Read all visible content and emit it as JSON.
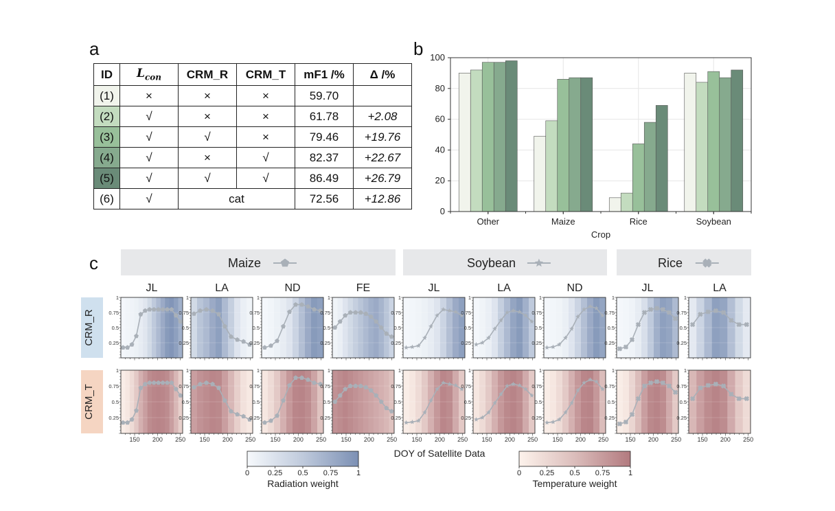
{
  "panels": {
    "a": "a",
    "b": "b",
    "c": "c"
  },
  "table": {
    "headers": {
      "id": "ID",
      "lcon_main": "L",
      "lcon_sub": "con",
      "crm_r": "CRM_R",
      "crm_t": "CRM_T",
      "mf1": "mF1 /%",
      "delta": "Δ /%"
    },
    "rows": [
      {
        "id": "(1)",
        "lcon": "×",
        "crm_r": "×",
        "crm_t": "×",
        "mf1": "59.70",
        "delta": "",
        "color": "#f1f4ec"
      },
      {
        "id": "(2)",
        "lcon": "√",
        "crm_r": "×",
        "crm_t": "×",
        "mf1": "61.78",
        "delta": "+2.08",
        "color": "#c3dcbf"
      },
      {
        "id": "(3)",
        "lcon": "√",
        "crm_r": "√",
        "crm_t": "×",
        "mf1": "79.46",
        "delta": "+19.76",
        "color": "#98c09a"
      },
      {
        "id": "(4)",
        "lcon": "√",
        "crm_r": "×",
        "crm_t": "√",
        "mf1": "82.37",
        "delta": "+22.67",
        "color": "#86aa8e"
      },
      {
        "id": "(5)",
        "lcon": "√",
        "crm_r": "√",
        "crm_t": "√",
        "mf1": "86.49",
        "delta": "+26.79",
        "color": "#6a8b78"
      },
      {
        "id": "(6)",
        "lcon": "√",
        "merged": "cat",
        "mf1": "72.56",
        "delta": "+12.86",
        "color": "#ffffff"
      }
    ]
  },
  "chart_data": [
    {
      "type": "bar",
      "xlabel": "Crop",
      "ylabel": "",
      "ylim": [
        0,
        100
      ],
      "yticks": [
        0,
        20,
        40,
        60,
        80,
        100
      ],
      "grid": true,
      "categories": [
        "Other",
        "Maize",
        "Rice",
        "Soybean"
      ],
      "series_colors": [
        "#f1f4ec",
        "#c3dcbf",
        "#98c09a",
        "#86aa8e",
        "#6a8b78"
      ],
      "series": [
        {
          "values": [
            90,
            49,
            9,
            90
          ]
        },
        {
          "values": [
            92,
            59,
            12,
            84
          ]
        },
        {
          "values": [
            97,
            86,
            44,
            91
          ]
        },
        {
          "values": [
            97,
            87,
            58,
            87
          ]
        },
        {
          "values": [
            98,
            87,
            69,
            92
          ]
        }
      ]
    },
    {
      "type": "line",
      "xlabel": "DOY of Satellite Data",
      "rows": [
        "CRM_R",
        "CRM_T"
      ],
      "row_colors": {
        "CRM_R": "#cfe0ee",
        "CRM_T": "#f5d5c2"
      },
      "xticks": [
        150,
        200,
        250
      ],
      "yticks": [
        0,
        0.25,
        0.5,
        0.75,
        1
      ],
      "ytick_labels": [
        "0",
        "0.25",
        "0.5",
        "0.75",
        "1"
      ],
      "groups": [
        {
          "name": "Maize",
          "marker": "pentagon",
          "regions": [
            "JL",
            "LA",
            "ND",
            "FE"
          ]
        },
        {
          "name": "Soybean",
          "marker": "star",
          "regions": [
            "JL",
            "LA",
            "ND"
          ]
        },
        {
          "name": "Rice",
          "marker": "cross",
          "regions": [
            "JL",
            "LA"
          ]
        }
      ],
      "doy": [
        125,
        135,
        145,
        155,
        165,
        175,
        185,
        195,
        205,
        215,
        225,
        235,
        245,
        255
      ],
      "subplots": [
        {
          "group": "Maize",
          "region": "JL",
          "values": [
            0.17,
            0.17,
            0.22,
            0.36,
            0.72,
            0.78,
            0.8,
            0.8,
            0.8,
            0.8,
            0.8,
            0.8,
            0.7,
            0.6
          ],
          "rad": [
            0.02,
            0.04,
            0.06,
            0.08,
            0.12,
            0.18,
            0.3,
            0.45,
            0.6,
            0.75,
            0.9,
            0.95,
            0.85,
            0.7
          ],
          "temp": [
            0.05,
            0.1,
            0.2,
            0.35,
            0.55,
            0.7,
            0.85,
            0.9,
            0.92,
            0.9,
            0.85,
            0.7,
            0.5,
            0.3
          ]
        },
        {
          "group": "Maize",
          "region": "LA",
          "values": [
            0.73,
            0.78,
            0.8,
            0.78,
            0.72,
            0.52,
            0.35,
            0.3,
            0.27,
            0.22
          ],
          "rad": [
            0.3,
            0.5,
            0.6,
            0.75,
            0.85,
            0.6,
            0.4,
            0.2,
            0.1,
            0.05
          ],
          "temp": [
            0.7,
            0.8,
            0.85,
            0.9,
            0.88,
            0.7,
            0.5,
            0.3,
            0.15,
            0.08
          ]
        },
        {
          "group": "Maize",
          "region": "ND",
          "values": [
            0.17,
            0.2,
            0.28,
            0.52,
            0.76,
            0.88,
            0.88,
            0.85,
            0.8,
            0.78
          ],
          "rad": [
            0.02,
            0.04,
            0.08,
            0.12,
            0.2,
            0.35,
            0.55,
            0.75,
            0.9,
            0.85
          ],
          "temp": [
            0.1,
            0.2,
            0.35,
            0.55,
            0.75,
            0.9,
            0.92,
            0.85,
            0.65,
            0.4
          ]
        },
        {
          "group": "Maize",
          "region": "FE",
          "values": [
            0.5,
            0.6,
            0.7,
            0.75,
            0.75,
            0.75,
            0.73,
            0.68,
            0.6,
            0.5,
            0.4,
            0.35
          ],
          "rad": [
            0.05,
            0.1,
            0.2,
            0.3,
            0.4,
            0.5,
            0.6,
            0.7,
            0.75,
            0.65,
            0.5,
            0.35
          ],
          "temp": [
            0.8,
            0.85,
            0.9,
            0.85,
            0.8,
            0.75,
            0.7,
            0.65,
            0.6,
            0.55,
            0.5,
            0.4
          ]
        },
        {
          "group": "Soybean",
          "region": "JL",
          "values": [
            0.17,
            0.18,
            0.2,
            0.33,
            0.52,
            0.7,
            0.8,
            0.78,
            0.76,
            0.7
          ],
          "rad": [
            0.02,
            0.03,
            0.05,
            0.08,
            0.12,
            0.2,
            0.35,
            0.55,
            0.75,
            0.85
          ],
          "temp": [
            0.05,
            0.1,
            0.2,
            0.35,
            0.55,
            0.75,
            0.9,
            0.85,
            0.6,
            0.35
          ]
        },
        {
          "group": "Soybean",
          "region": "LA",
          "values": [
            0.22,
            0.25,
            0.33,
            0.48,
            0.62,
            0.75,
            0.78,
            0.76,
            0.7,
            0.6
          ],
          "rad": [
            0.02,
            0.05,
            0.1,
            0.2,
            0.4,
            0.6,
            0.8,
            0.9,
            0.7,
            0.45
          ],
          "temp": [
            0.1,
            0.2,
            0.35,
            0.55,
            0.75,
            0.88,
            0.92,
            0.85,
            0.6,
            0.35
          ]
        },
        {
          "group": "Soybean",
          "region": "ND",
          "values": [
            0.17,
            0.18,
            0.22,
            0.33,
            0.48,
            0.68,
            0.8,
            0.85,
            0.82,
            0.7
          ],
          "rad": [
            0.02,
            0.03,
            0.05,
            0.1,
            0.2,
            0.35,
            0.55,
            0.75,
            0.9,
            0.8
          ],
          "temp": [
            0.05,
            0.1,
            0.2,
            0.35,
            0.55,
            0.75,
            0.9,
            0.92,
            0.75,
            0.45
          ]
        },
        {
          "group": "Rice",
          "region": "JL",
          "values": [
            0.15,
            0.18,
            0.3,
            0.55,
            0.75,
            0.8,
            0.82,
            0.8,
            0.75,
            0.65
          ],
          "rad": [
            0.02,
            0.03,
            0.06,
            0.12,
            0.25,
            0.45,
            0.7,
            0.85,
            0.8,
            0.6
          ],
          "temp": [
            0.05,
            0.1,
            0.25,
            0.45,
            0.7,
            0.88,
            0.92,
            0.85,
            0.6,
            0.35
          ]
        },
        {
          "group": "Rice",
          "region": "LA",
          "values": [
            0.55,
            0.72,
            0.76,
            0.78,
            0.75,
            0.62,
            0.55,
            0.55
          ],
          "rad": [
            0.15,
            0.35,
            0.6,
            0.85,
            0.8,
            0.55,
            0.3,
            0.15
          ],
          "temp": [
            0.5,
            0.7,
            0.85,
            0.92,
            0.85,
            0.6,
            0.35,
            0.2
          ]
        }
      ],
      "colorbars": [
        {
          "label": "Radiation weight",
          "ticks": [
            "0",
            "0.25",
            "0.5",
            "0.75",
            "1"
          ],
          "from": "#f6f9fc",
          "to": "#7c90b4"
        },
        {
          "label": "Temperature weight",
          "ticks": [
            "0",
            "0.25",
            "0.5",
            "0.75",
            "1"
          ],
          "from": "#fdf3ec",
          "to": "#b27a7f"
        }
      ]
    }
  ]
}
